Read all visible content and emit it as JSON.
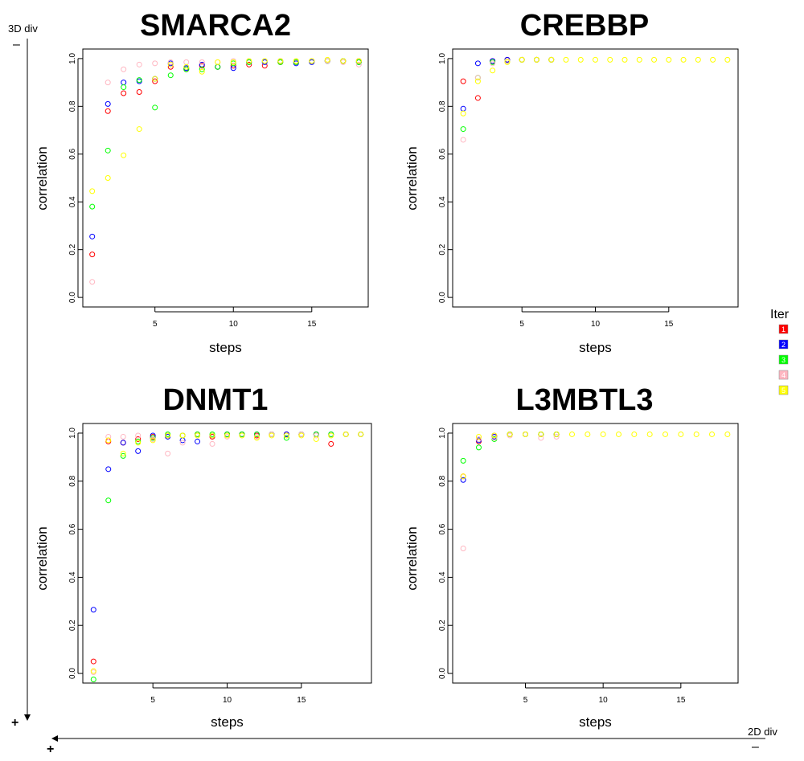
{
  "chart_data": [
    {
      "type": "scatter",
      "title": "SMARCA2",
      "xlabel": "steps",
      "ylabel": "correlation",
      "xlim": [
        0.4,
        18.6
      ],
      "ylim": [
        -0.04,
        1.04
      ],
      "xticks": [
        5,
        10,
        15
      ],
      "yticks": [
        0.0,
        0.2,
        0.4,
        0.6,
        0.8,
        1.0
      ],
      "series": [
        {
          "name": "1",
          "x": [
            1,
            2,
            3,
            4,
            5,
            6,
            7,
            8,
            9,
            10,
            11,
            12,
            13,
            14,
            15,
            16,
            17,
            18
          ],
          "y": [
            0.18,
            0.78,
            0.855,
            0.86,
            0.905,
            0.965,
            0.955,
            0.97,
            0.965,
            0.97,
            0.975,
            0.97,
            0.985,
            0.985,
            0.99,
            0.99,
            0.99,
            0.99
          ]
        },
        {
          "name": "2",
          "x": [
            1,
            2,
            3,
            4,
            5,
            6,
            7,
            8,
            9,
            10,
            11,
            12,
            13,
            14,
            15,
            16,
            17,
            18
          ],
          "y": [
            0.255,
            0.81,
            0.9,
            0.905,
            0.915,
            0.98,
            0.96,
            0.975,
            0.965,
            0.96,
            0.985,
            0.985,
            0.99,
            0.98,
            0.985,
            0.99,
            0.99,
            0.985
          ]
        },
        {
          "name": "3",
          "x": [
            1,
            2,
            3,
            4,
            5,
            6,
            7,
            8,
            9,
            10,
            11,
            12,
            13,
            14,
            15,
            16,
            17,
            18
          ],
          "y": [
            0.38,
            0.615,
            0.88,
            0.91,
            0.795,
            0.93,
            0.955,
            0.955,
            0.965,
            0.98,
            0.985,
            0.99,
            0.985,
            0.985,
            0.99,
            0.99,
            0.99,
            0.985
          ]
        },
        {
          "name": "4",
          "x": [
            1,
            2,
            3,
            4,
            5,
            6,
            7,
            8,
            9,
            10,
            11,
            12,
            13,
            14,
            15,
            16,
            17,
            18
          ],
          "y": [
            0.065,
            0.9,
            0.955,
            0.975,
            0.98,
            0.985,
            0.985,
            0.985,
            0.985,
            0.99,
            0.99,
            0.99,
            0.99,
            0.99,
            0.99,
            0.99,
            0.985,
            0.975
          ]
        },
        {
          "name": "5",
          "x": [
            1,
            2,
            3,
            4,
            5,
            6,
            7,
            8,
            9,
            10,
            11,
            12,
            13,
            14,
            15,
            16,
            17,
            18
          ],
          "y": [
            0.445,
            0.5,
            0.595,
            0.705,
            0.915,
            0.975,
            0.965,
            0.945,
            0.985,
            0.985,
            0.99,
            0.99,
            0.99,
            0.99,
            0.99,
            0.995,
            0.99,
            0.99
          ]
        }
      ]
    },
    {
      "type": "scatter",
      "title": "CREBBP",
      "xlabel": "steps",
      "ylabel": "correlation",
      "xlim": [
        0.28,
        19.72
      ],
      "ylim": [
        -0.04,
        1.04
      ],
      "xticks": [
        5,
        10,
        15
      ],
      "yticks": [
        0.0,
        0.2,
        0.4,
        0.6,
        0.8,
        1.0
      ],
      "series": [
        {
          "name": "1",
          "x": [
            1,
            2,
            3,
            4,
            5,
            6,
            7
          ],
          "y": [
            0.905,
            0.835,
            0.99,
            0.995,
            0.995,
            0.995,
            0.995
          ]
        },
        {
          "name": "2",
          "x": [
            1,
            2,
            3,
            4,
            5,
            6,
            7
          ],
          "y": [
            0.79,
            0.98,
            0.99,
            0.995,
            0.995,
            0.995,
            0.995
          ]
        },
        {
          "name": "3",
          "x": [
            1,
            2,
            3,
            4,
            5,
            6,
            7
          ],
          "y": [
            0.705,
            0.92,
            0.985,
            0.99,
            0.995,
            0.995,
            0.995
          ]
        },
        {
          "name": "4",
          "x": [
            1,
            2,
            3,
            4,
            5,
            6,
            7
          ],
          "y": [
            0.66,
            0.92,
            0.98,
            0.99,
            0.995,
            0.995,
            0.995
          ]
        },
        {
          "name": "5",
          "x": [
            1,
            2,
            3,
            4,
            5,
            6,
            7,
            8,
            9,
            10,
            11,
            12,
            13,
            14,
            15,
            16,
            17,
            18,
            19
          ],
          "y": [
            0.77,
            0.905,
            0.95,
            0.985,
            0.995,
            0.995,
            0.995,
            0.995,
            0.995,
            0.995,
            0.995,
            0.995,
            0.995,
            0.995,
            0.995,
            0.995,
            0.995,
            0.995,
            0.995
          ]
        }
      ]
    },
    {
      "type": "scatter",
      "title": "DNMT1",
      "xlabel": "steps",
      "ylabel": "correlation",
      "xlim": [
        0.28,
        19.72
      ],
      "ylim": [
        -0.04,
        1.04
      ],
      "xticks": [
        5,
        10,
        15
      ],
      "yticks": [
        0.0,
        0.2,
        0.4,
        0.6,
        0.8,
        1.0
      ],
      "series": [
        {
          "name": "1",
          "x": [
            1,
            2,
            3,
            4,
            5,
            6,
            7,
            8,
            9,
            10,
            11,
            12,
            13,
            14,
            15,
            16,
            17,
            18,
            19
          ],
          "y": [
            0.05,
            0.965,
            0.96,
            0.975,
            0.985,
            0.99,
            0.99,
            0.995,
            0.985,
            0.995,
            0.995,
            0.99,
            0.995,
            0.995,
            0.995,
            0.995,
            0.955,
            0.995,
            0.995
          ]
        },
        {
          "name": "2",
          "x": [
            1,
            2,
            3,
            4,
            5,
            6,
            7,
            8,
            9,
            10,
            11,
            12,
            13,
            14,
            15,
            16,
            17,
            18,
            19
          ],
          "y": [
            0.265,
            0.85,
            0.96,
            0.925,
            0.99,
            0.985,
            0.97,
            0.965,
            0.99,
            0.995,
            0.995,
            0.995,
            0.995,
            0.995,
            0.995,
            0.995,
            0.995,
            0.995,
            0.995
          ]
        },
        {
          "name": "3",
          "x": [
            1,
            2,
            3,
            4,
            5,
            6,
            7,
            8,
            9,
            10,
            11,
            12,
            13,
            14,
            15,
            16,
            17,
            18,
            19
          ],
          "y": [
            -0.025,
            0.72,
            0.905,
            0.965,
            0.98,
            0.995,
            0.99,
            0.995,
            0.995,
            0.995,
            0.995,
            0.995,
            0.995,
            0.98,
            0.995,
            0.995,
            0.995,
            0.995,
            0.995
          ]
        },
        {
          "name": "4",
          "x": [
            1,
            2,
            3,
            4,
            5,
            6,
            7,
            8,
            9,
            10,
            11,
            12,
            13,
            14,
            15,
            16,
            17,
            18,
            19
          ],
          "y": [
            0.005,
            0.985,
            0.985,
            0.99,
            0.975,
            0.915,
            0.96,
            0.99,
            0.955,
            0.985,
            0.99,
            0.985,
            0.995,
            0.99,
            0.995,
            0.99,
            0.99,
            0.995,
            0.995
          ]
        },
        {
          "name": "5",
          "x": [
            1,
            2,
            3,
            4,
            5,
            6,
            7,
            8,
            9,
            10,
            11,
            12,
            13,
            14,
            15,
            16,
            17,
            18,
            19
          ],
          "y": [
            0.01,
            0.97,
            0.915,
            0.96,
            0.97,
            0.99,
            0.99,
            0.99,
            0.99,
            0.99,
            0.99,
            0.98,
            0.99,
            0.99,
            0.99,
            0.975,
            0.99,
            0.995,
            0.995
          ]
        }
      ]
    },
    {
      "type": "scatter",
      "title": "L3MBTL3",
      "xlabel": "steps",
      "ylabel": "correlation",
      "xlim": [
        0.32,
        18.68
      ],
      "ylim": [
        -0.04,
        1.04
      ],
      "xticks": [
        5,
        10,
        15
      ],
      "yticks": [
        0.0,
        0.2,
        0.4,
        0.6,
        0.8,
        1.0
      ],
      "series": [
        {
          "name": "1",
          "x": [
            1,
            2,
            3,
            4,
            5,
            6,
            7
          ],
          "y": [
            0.82,
            0.965,
            0.99,
            0.995,
            0.995,
            0.995,
            0.995
          ]
        },
        {
          "name": "2",
          "x": [
            1,
            2,
            3,
            4,
            5,
            6,
            7
          ],
          "y": [
            0.805,
            0.97,
            0.985,
            0.995,
            0.995,
            0.995,
            0.995
          ]
        },
        {
          "name": "3",
          "x": [
            1,
            2,
            3,
            4,
            5,
            6,
            7
          ],
          "y": [
            0.885,
            0.94,
            0.975,
            0.995,
            0.995,
            0.995,
            0.995
          ]
        },
        {
          "name": "4",
          "x": [
            1,
            2,
            3,
            4,
            5,
            6,
            7
          ],
          "y": [
            0.52,
            0.975,
            0.98,
            0.99,
            0.995,
            0.98,
            0.985
          ]
        },
        {
          "name": "5",
          "x": [
            1,
            2,
            3,
            4,
            5,
            6,
            7,
            8,
            9,
            10,
            11,
            12,
            13,
            14,
            15,
            16,
            17,
            18
          ],
          "y": [
            0.82,
            0.985,
            0.99,
            0.995,
            0.995,
            0.995,
            0.995,
            0.995,
            0.995,
            0.995,
            0.995,
            0.995,
            0.995,
            0.995,
            0.995,
            0.995,
            0.995,
            0.995
          ]
        }
      ]
    }
  ],
  "series_colors": {
    "1": "#ff0000",
    "2": "#0000ff",
    "3": "#00ff00",
    "4": "#ffb6c1",
    "5": "#ffff00"
  },
  "legend": {
    "title": "Iter",
    "items": [
      "1",
      "2",
      "3",
      "4",
      "5"
    ]
  },
  "annotations": {
    "vertical_axis_label": "3D div",
    "vertical_top": "–",
    "vertical_bottom": "+",
    "horizontal_axis_label": "2D div",
    "horizontal_left": "+",
    "horizontal_right": "–"
  }
}
